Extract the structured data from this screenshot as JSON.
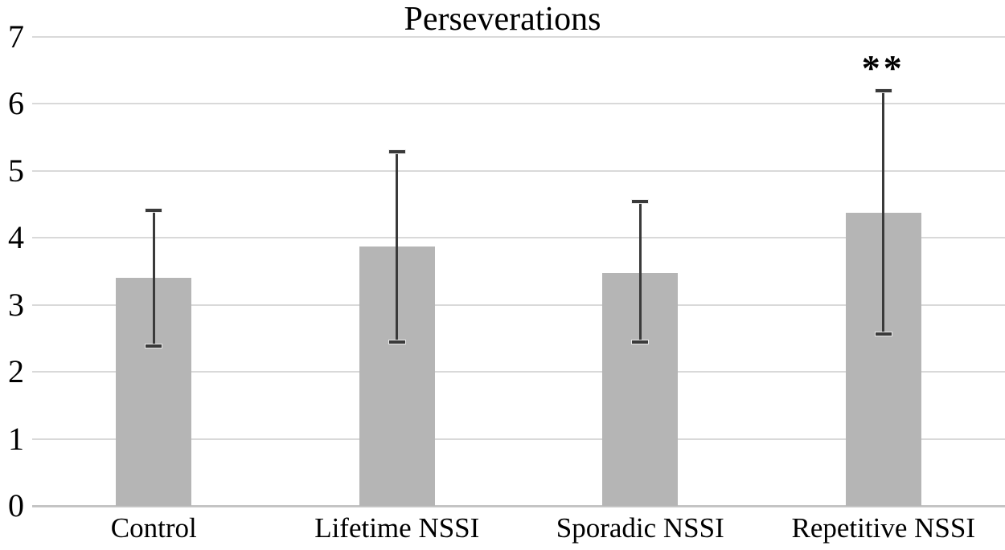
{
  "chart_data": {
    "type": "bar",
    "title": "Perseverations",
    "categories": [
      "Control",
      "Lifetime NSSI",
      "Sporadic NSSI",
      "Repetitive NSSI"
    ],
    "values": [
      3.4,
      3.87,
      3.48,
      4.37
    ],
    "error_bars": {
      "upper": [
        4.41,
        5.28,
        4.54,
        6.2
      ],
      "lower": [
        2.38,
        2.45,
        2.45,
        2.57
      ]
    },
    "annotations": [
      {
        "category": "Repetitive NSSI",
        "text": "**"
      }
    ],
    "xlabel": "",
    "ylabel": "",
    "ylim": [
      0,
      7
    ],
    "yticks": [
      0,
      1,
      2,
      3,
      4,
      5,
      6,
      7
    ],
    "grid": "horizontal",
    "legend": "none",
    "colors": {
      "bar": "#b5b5b5",
      "gridline": "#d9d9d9",
      "axis_line": "#c4c4c4",
      "error_bar": "#3a3a3a",
      "text": "#000000",
      "background": "#ffffff"
    }
  }
}
